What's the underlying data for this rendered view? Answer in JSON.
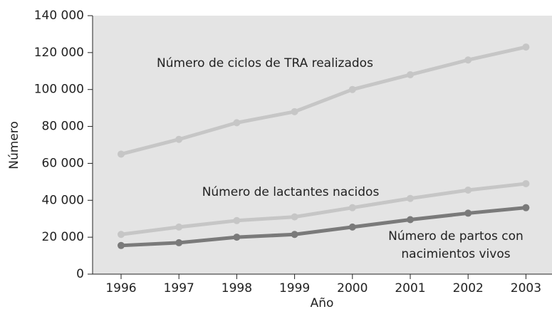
{
  "chart_data": {
    "type": "line",
    "x_label": "Año",
    "y_label": "Número",
    "categories": [
      "1996",
      "1997",
      "1998",
      "1999",
      "2000",
      "2001",
      "2002",
      "2003"
    ],
    "series": [
      {
        "name": "Número de ciclos de TRA realizados",
        "color": "#c6c6c6",
        "values": [
          65000,
          73000,
          82000,
          88000,
          100000,
          108000,
          116000,
          123000
        ]
      },
      {
        "name": "Número de lactantes nacidos",
        "color": "#c6c6c6",
        "values": [
          21500,
          25500,
          29000,
          31000,
          36000,
          41000,
          45500,
          49000
        ]
      },
      {
        "name": "Número de partos con nacimientos vivos",
        "color": "#7a7a7a",
        "values": [
          15500,
          17000,
          20000,
          21500,
          25500,
          29500,
          33000,
          36000
        ]
      }
    ],
    "ylim": [
      0,
      140000
    ],
    "yticks": [
      0,
      {
        "value": 20000,
        "label": "20 000"
      },
      {
        "value": 40000,
        "label": "40 000"
      },
      {
        "value": 60000,
        "label": "60 000"
      },
      {
        "value": 80000,
        "label": "80 000"
      },
      {
        "value": 100000,
        "label": "100 000"
      },
      {
        "value": 120000,
        "label": "120 000"
      },
      {
        "value": 140000,
        "label": "140 000"
      }
    ],
    "background": "#e4e4e4"
  }
}
